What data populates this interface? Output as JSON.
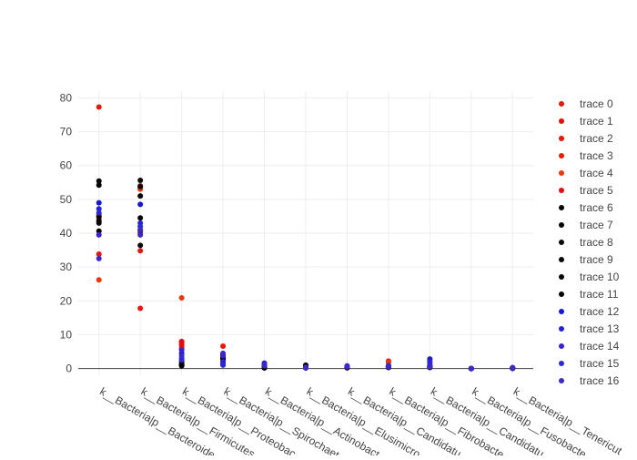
{
  "chart_data": {
    "type": "scatter",
    "title": "",
    "xlabel": "",
    "ylabel": "",
    "ylim": [
      -2,
      82
    ],
    "yticks": [
      0,
      10,
      20,
      30,
      40,
      50,
      60,
      70,
      80
    ],
    "grid": true,
    "zero_line": true,
    "legend_placement": "right",
    "categories": [
      "k__Bacteria|p__Bacteroidetes",
      "k__Bacteria|p__Firmicutes",
      "k__Bacteria|p__Proteobacteria",
      "k__Bacteria|p__Spirochaetes",
      "k__Bacteria|p__Actinobacteria",
      "k__Bacteria|p__Elusimicrobia",
      "k__Bacteria|p__Candidatus_Saccharibacteria",
      "k__Bacteria|p__Fibrobacteres",
      "k__Bacteria|p__Candidatus_Melainabacteria",
      "k__Bacteria|p__Fusobacteria",
      "k__Bacteria|p__Tenericutes"
    ],
    "tick_labels": [
      "k__Bacteria|p__Bacteroide",
      "k__Bacteria|p__Firmicutes",
      "k__Bacteria|p__Proteobac",
      "k__Bacteria|p__Spirochaet",
      "k__Bacteria|p__Actinobact",
      "k__Bacteria|p__Elusimicro",
      "k__Bacteria|p__Candidatu",
      "k__Bacteria|p__Fibrobacte",
      "k__Bacteria|p__Candidatu",
      "k__Bacteria|p__Fusobacte",
      "k__Bacteria|p__Tenericut"
    ],
    "legend_visible_count": 17,
    "series": [
      {
        "name": "trace 0",
        "color": "#e8170e",
        "values": [
          77.3,
          17.8,
          7.9,
          6.6,
          0.6,
          0.2,
          0.2,
          2.2,
          0.8,
          0.0,
          0.1
        ]
      },
      {
        "name": "trace 1",
        "color": "#e80c0c",
        "values": [
          45.0,
          53.5,
          8.0,
          4.0,
          1.0,
          0.4,
          0.5,
          0.7,
          0.8,
          0.0,
          0.1
        ]
      },
      {
        "name": "trace 2",
        "color": "#e6160c",
        "values": [
          33.8,
          34.8,
          6.5,
          3.0,
          0.8,
          0.3,
          0.4,
          0.5,
          0.6,
          0.0,
          0.1
        ]
      },
      {
        "name": "trace 3",
        "color": "#e81a0a",
        "values": [
          44.0,
          54.0,
          5.8,
          2.5,
          0.9,
          0.6,
          0.3,
          0.6,
          0.7,
          0.0,
          0.2
        ]
      },
      {
        "name": "trace 4",
        "color": "#e8380c",
        "values": [
          26.2,
          53.0,
          20.9,
          1.5,
          0.5,
          0.2,
          0.2,
          1.8,
          0.5,
          0.0,
          0.1
        ]
      },
      {
        "name": "trace 5",
        "color": "#e80a10",
        "values": [
          45.5,
          40.0,
          7.2,
          1.8,
          0.7,
          0.3,
          0.3,
          0.4,
          0.6,
          0.0,
          0.1
        ]
      },
      {
        "name": "trace 6",
        "color": "#080808",
        "values": [
          55.4,
          55.6,
          0.8,
          4.0,
          0.3,
          0.8,
          0.4,
          0.5,
          0.4,
          0.0,
          0.1
        ]
      },
      {
        "name": "trace 7",
        "color": "#050505",
        "values": [
          54.2,
          51.0,
          1.2,
          3.5,
          0.4,
          1.0,
          0.3,
          0.6,
          0.5,
          0.0,
          0.1
        ]
      },
      {
        "name": "trace 8",
        "color": "#0a0a0a",
        "values": [
          43.0,
          36.4,
          1.0,
          3.0,
          0.2,
          0.9,
          0.5,
          0.4,
          0.4,
          0.0,
          0.1
        ]
      },
      {
        "name": "trace 9",
        "color": "#060606",
        "values": [
          40.6,
          44.5,
          2.0,
          2.8,
          0.3,
          0.7,
          0.4,
          0.3,
          0.3,
          0.0,
          0.1
        ]
      },
      {
        "name": "trace 10",
        "color": "#070707",
        "values": [
          44.8,
          53.8,
          1.5,
          4.3,
          0.2,
          0.6,
          0.3,
          0.5,
          0.4,
          0.0,
          0.1
        ]
      },
      {
        "name": "trace 11",
        "color": "#040404",
        "values": [
          43.5,
          40.8,
          0.9,
          3.2,
          0.3,
          0.8,
          0.4,
          0.4,
          0.5,
          0.0,
          0.1
        ]
      },
      {
        "name": "trace 12",
        "color": "#1616d8",
        "values": [
          49.0,
          48.5,
          4.5,
          1.2,
          1.6,
          0.2,
          0.6,
          0.8,
          2.8,
          0.0,
          0.2
        ]
      },
      {
        "name": "trace 13",
        "color": "#2424d6",
        "values": [
          47.2,
          43.0,
          3.0,
          2.0,
          1.2,
          0.3,
          0.7,
          0.6,
          2.2,
          0.0,
          0.2
        ]
      },
      {
        "name": "trace 14",
        "color": "#3a22d0",
        "values": [
          39.5,
          39.5,
          5.5,
          3.8,
          1.4,
          0.2,
          0.5,
          0.7,
          1.6,
          0.0,
          0.3
        ]
      },
      {
        "name": "trace 15",
        "color": "#2a2ad4",
        "values": [
          46.0,
          42.0,
          2.5,
          1.0,
          1.0,
          0.3,
          0.6,
          0.9,
          1.0,
          0.0,
          0.2
        ]
      },
      {
        "name": "trace 16",
        "color": "#3a2ac8",
        "values": [
          32.5,
          41.0,
          3.8,
          4.5,
          0.8,
          0.4,
          0.8,
          0.5,
          0.5,
          0.0,
          0.2
        ]
      }
    ]
  }
}
